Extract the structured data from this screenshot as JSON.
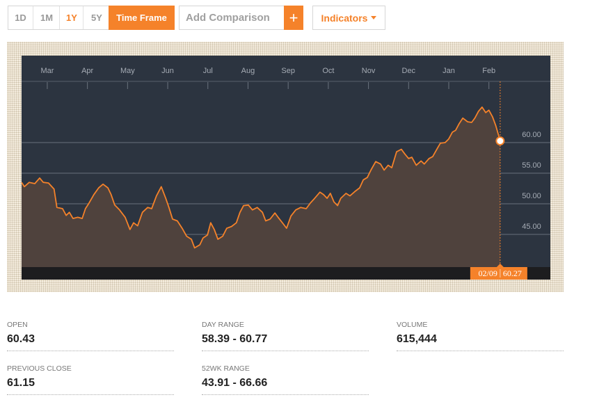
{
  "toolbar": {
    "ranges": [
      "1D",
      "1M",
      "1Y",
      "5Y"
    ],
    "selected_range": 2,
    "time_frame": "Time Frame",
    "comparison_placeholder": "Add Comparison",
    "add_button": "+",
    "indicators": "Indicators"
  },
  "chart_data": {
    "type": "line",
    "x": [
      2.36,
      2.43,
      2.55,
      2.69,
      2.81,
      2.9,
      3.03,
      3.17,
      3.24,
      3.38,
      3.47,
      3.55,
      3.64,
      3.76,
      3.87,
      3.95,
      4.04,
      4.16,
      4.28,
      4.39,
      4.51,
      4.59,
      4.68,
      4.8,
      4.94,
      5.06,
      5.15,
      5.25,
      5.37,
      5.5,
      5.6,
      5.72,
      5.84,
      5.95,
      6.03,
      6.12,
      6.24,
      6.36,
      6.47,
      6.59,
      6.67,
      6.8,
      6.88,
      6.99,
      7.07,
      7.16,
      7.25,
      7.37,
      7.47,
      7.59,
      7.71,
      7.8,
      7.89,
      8.01,
      8.11,
      8.23,
      8.36,
      8.44,
      8.55,
      8.67,
      8.75,
      8.88,
      8.96,
      9.07,
      9.19,
      9.31,
      9.45,
      9.55,
      9.66,
      9.79,
      9.88,
      9.97,
      10.05,
      10.14,
      10.23,
      10.31,
      10.44,
      10.54,
      10.66,
      10.78,
      10.87,
      10.97,
      11.06,
      11.18,
      11.3,
      11.39,
      11.49,
      11.58,
      11.7,
      11.82,
      11.91,
      12.0,
      12.08,
      12.19,
      12.31,
      12.39,
      12.51,
      12.6,
      12.71,
      12.79,
      12.91,
      13.0,
      13.09,
      13.17,
      13.26,
      13.35,
      13.47,
      13.57,
      13.65,
      13.74,
      13.83,
      13.92,
      14.0,
      14.09,
      14.17,
      14.28
    ],
    "series": [
      {
        "color": "#f5822a",
        "fill": "#4f423d",
        "values": [
          53.5,
          52.8,
          53.5,
          53.3,
          54.2,
          53.5,
          53.4,
          52.4,
          49.4,
          49.2,
          48.1,
          48.6,
          47.6,
          47.8,
          47.6,
          49.2,
          50.1,
          51.5,
          52.6,
          53.2,
          52.6,
          51.5,
          49.8,
          49.0,
          47.8,
          45.8,
          46.9,
          46.4,
          48.6,
          49.4,
          49.2,
          51.3,
          52.8,
          50.9,
          49.4,
          47.5,
          47.2,
          46.0,
          44.7,
          44.2,
          42.8,
          43.3,
          44.4,
          44.9,
          46.9,
          45.8,
          44.2,
          44.7,
          46.0,
          46.3,
          46.9,
          48.6,
          49.7,
          49.8,
          49.0,
          49.4,
          48.6,
          47.2,
          47.5,
          48.5,
          47.8,
          46.7,
          46.0,
          48.0,
          49.0,
          49.4,
          49.2,
          50.1,
          50.9,
          51.9,
          51.5,
          50.9,
          51.7,
          50.3,
          49.7,
          50.9,
          51.7,
          51.3,
          52.0,
          52.6,
          53.9,
          54.3,
          55.5,
          56.9,
          56.5,
          55.5,
          56.3,
          55.9,
          58.5,
          58.9,
          58.1,
          57.4,
          57.6,
          56.3,
          57.0,
          56.5,
          57.4,
          57.7,
          59.0,
          59.9,
          60.0,
          60.6,
          61.7,
          62.0,
          63.1,
          64.0,
          63.4,
          63.3,
          64.0,
          65.1,
          65.8,
          64.9,
          65.3,
          64.2,
          62.8,
          60.27
        ]
      }
    ],
    "xlim": [
      2.36,
      15.53
    ],
    "xticks": [
      {
        "value": 3,
        "label": "Mar"
      },
      {
        "value": 4,
        "label": "Apr"
      },
      {
        "value": 5,
        "label": "May"
      },
      {
        "value": 6,
        "label": "Jun"
      },
      {
        "value": 7,
        "label": "Jul"
      },
      {
        "value": 8,
        "label": "Aug"
      },
      {
        "value": 9,
        "label": "Sep"
      },
      {
        "value": 10,
        "label": "Oct"
      },
      {
        "value": 11,
        "label": "Nov"
      },
      {
        "value": 12,
        "label": "Dec"
      },
      {
        "value": 13,
        "label": "Jan"
      },
      {
        "value": 14,
        "label": "Feb"
      }
    ],
    "ylim": [
      39.66,
      68.75
    ],
    "yticks": [
      {
        "value": 45,
        "label": "45.00"
      },
      {
        "value": 50,
        "label": "50.00"
      },
      {
        "value": 55,
        "label": "55.00"
      },
      {
        "value": 60,
        "label": "60.00"
      }
    ],
    "grid": true,
    "cursor_label": "02/09"
  },
  "stats": [
    {
      "label": "OPEN",
      "value": "60.43"
    },
    {
      "label": "DAY RANGE",
      "value": "58.39 - 60.77"
    },
    {
      "label": "VOLUME",
      "value": "615,444"
    },
    {
      "label": "PREVIOUS CLOSE",
      "value": "61.15"
    },
    {
      "label": "52WK RANGE",
      "value": "43.91 - 66.66"
    }
  ]
}
